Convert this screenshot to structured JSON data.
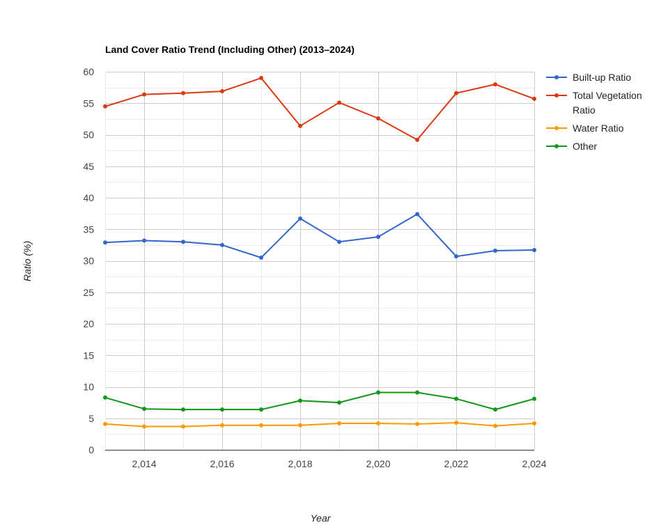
{
  "chart_data": {
    "type": "line",
    "title": "Land Cover Ratio Trend (Including Other) (2013–2024)",
    "xlabel": "Year",
    "ylabel": "Ratio (%)",
    "x": [
      2013,
      2014,
      2015,
      2016,
      2017,
      2018,
      2019,
      2020,
      2021,
      2022,
      2023,
      2024
    ],
    "xlim": [
      2013,
      2024
    ],
    "ylim": [
      0,
      60
    ],
    "x_ticks": [
      "2,014",
      "2,016",
      "2,018",
      "2,020",
      "2,022",
      "2,024"
    ],
    "y_ticks": [
      "0",
      "5",
      "10",
      "15",
      "20",
      "25",
      "30",
      "35",
      "40",
      "45",
      "50",
      "55",
      "60"
    ],
    "grid": true,
    "legend_position": "right",
    "series": [
      {
        "name": "Built-up Ratio",
        "color": "#3366cc",
        "values": [
          32.9,
          33.2,
          33.0,
          32.5,
          30.5,
          36.7,
          33.0,
          33.8,
          37.4,
          30.7,
          31.6,
          31.7
        ]
      },
      {
        "name": "Total Vegetation Ratio",
        "color": "#dc3912",
        "values": [
          54.5,
          56.4,
          56.6,
          56.9,
          59.0,
          51.4,
          55.1,
          52.6,
          49.2,
          56.6,
          58.0,
          55.7
        ]
      },
      {
        "name": "Water Ratio",
        "color": "#ff9900",
        "values": [
          4.1,
          3.7,
          3.7,
          3.9,
          3.9,
          3.9,
          4.2,
          4.2,
          4.1,
          4.3,
          3.8,
          4.2
        ]
      },
      {
        "name": "Other",
        "color": "#109618",
        "values": [
          8.3,
          6.5,
          6.4,
          6.4,
          6.4,
          7.8,
          7.5,
          9.1,
          9.1,
          8.1,
          6.4,
          8.1
        ]
      }
    ]
  }
}
